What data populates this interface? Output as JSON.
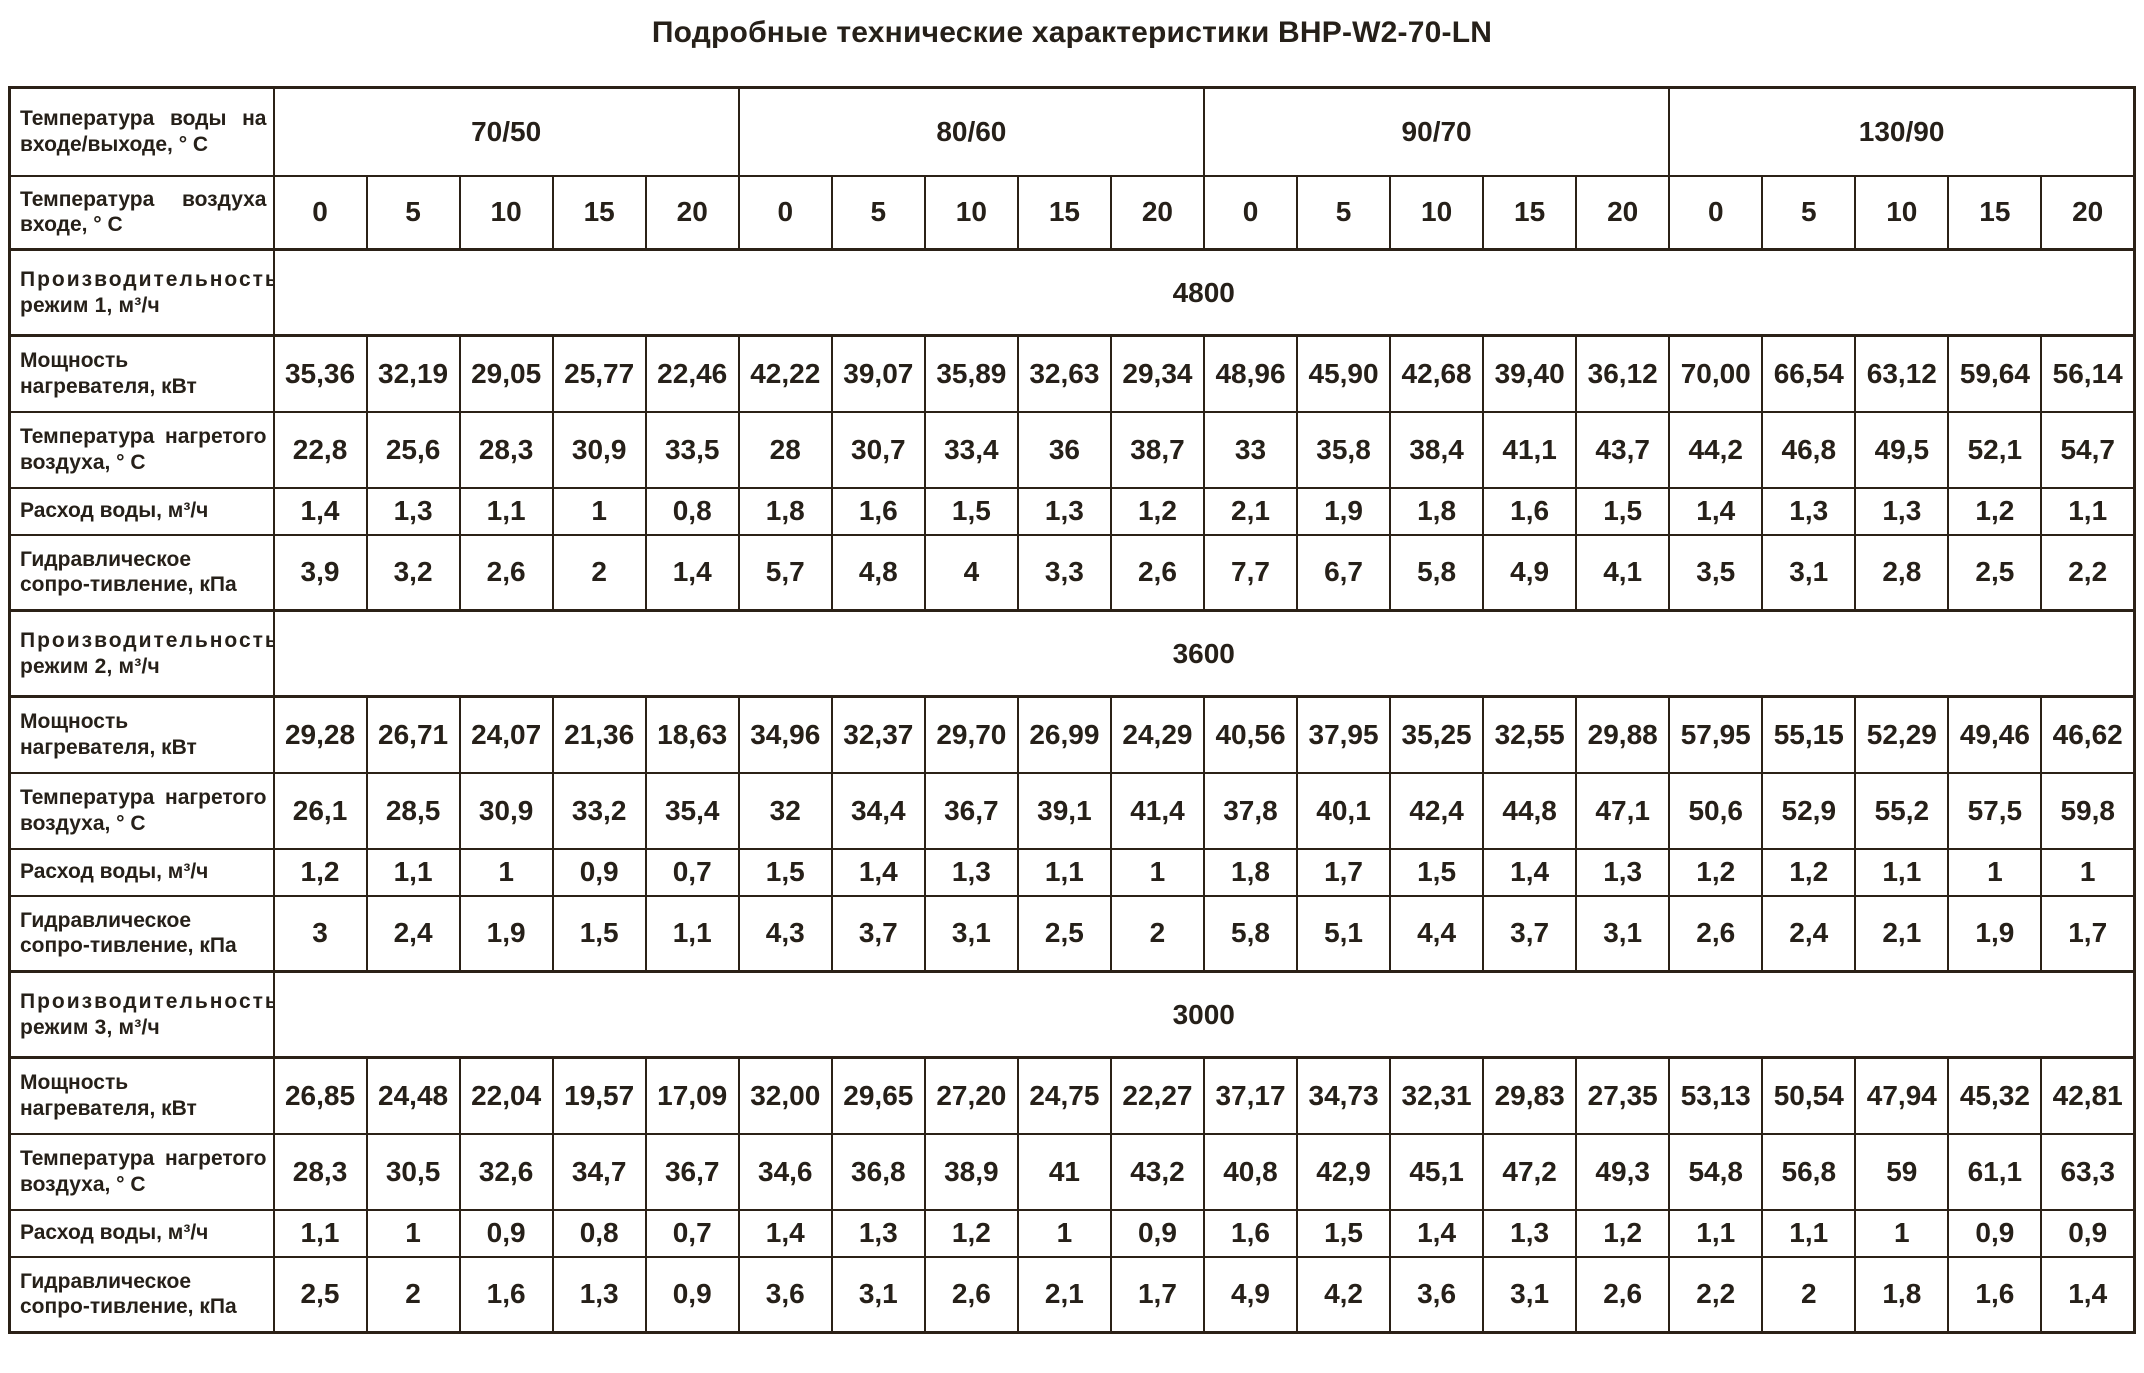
{
  "title": "Подробные технические характеристики BHP-W2-70-LN",
  "colors": {
    "text": "#262019",
    "border": "#2b2117",
    "background": "#ffffff"
  },
  "chart_data": {
    "type": "table",
    "title": "Подробные технические характеристики BHP-W2-70-LN",
    "water_temp_groups": [
      "70/50",
      "80/60",
      "90/70",
      "130/90"
    ],
    "air_temps_per_group": [
      0,
      5,
      10,
      15,
      20
    ],
    "modes": [
      {
        "capacity_m3h": 4800,
        "power_kW": [
          35.36,
          32.19,
          29.05,
          25.77,
          22.46,
          42.22,
          39.07,
          35.89,
          32.63,
          29.34,
          48.96,
          45.9,
          42.68,
          39.4,
          36.12,
          70.0,
          66.54,
          63.12,
          59.64,
          56.14
        ]
      },
      {
        "capacity_m3h": 3600,
        "power_kW": [
          29.28,
          26.71,
          24.07,
          21.36,
          18.63,
          34.96,
          32.37,
          29.7,
          26.99,
          24.29,
          40.56,
          37.95,
          35.25,
          32.55,
          29.88,
          57.95,
          55.15,
          52.29,
          49.46,
          46.62
        ]
      },
      {
        "capacity_m3h": 3000,
        "power_kW": [
          26.85,
          24.48,
          22.04,
          19.57,
          17.09,
          32.0,
          29.65,
          27.2,
          24.75,
          22.27,
          37.17,
          34.73,
          32.31,
          29.83,
          27.35,
          53.13,
          50.54,
          47.94,
          45.32,
          42.81
        ]
      }
    ]
  },
  "table": {
    "water_temp_header": {
      "label": "Температура воды на входе/выходе, ° С",
      "groups": [
        "70/50",
        "80/60",
        "90/70",
        "130/90"
      ]
    },
    "air_temp_header": {
      "label": "Температура воздуха входе, ° С",
      "values": [
        "0",
        "5",
        "10",
        "15",
        "20",
        "0",
        "5",
        "10",
        "15",
        "20",
        "0",
        "5",
        "10",
        "15",
        "20",
        "0",
        "5",
        "10",
        "15",
        "20"
      ]
    },
    "modes": [
      {
        "capacity_line1": "Производительность",
        "capacity_line2": "режим 1, м³/ч",
        "capacity_value": "4800",
        "rows": [
          {
            "label": "Мощность нагревателя, кВт",
            "values": [
              "35,36",
              "32,19",
              "29,05",
              "25,77",
              "22,46",
              "42,22",
              "39,07",
              "35,89",
              "32,63",
              "29,34",
              "48,96",
              "45,90",
              "42,68",
              "39,40",
              "36,12",
              "70,00",
              "66,54",
              "63,12",
              "59,64",
              "56,14"
            ]
          },
          {
            "label": "Температура нагретого воздуха, ° С",
            "values": [
              "22,8",
              "25,6",
              "28,3",
              "30,9",
              "33,5",
              "28",
              "30,7",
              "33,4",
              "36",
              "38,7",
              "33",
              "35,8",
              "38,4",
              "41,1",
              "43,7",
              "44,2",
              "46,8",
              "49,5",
              "52,1",
              "54,7"
            ]
          },
          {
            "label": "Расход воды, м³/ч",
            "values": [
              "1,4",
              "1,3",
              "1,1",
              "1",
              "0,8",
              "1,8",
              "1,6",
              "1,5",
              "1,3",
              "1,2",
              "2,1",
              "1,9",
              "1,8",
              "1,6",
              "1,5",
              "1,4",
              "1,3",
              "1,3",
              "1,2",
              "1,1"
            ]
          },
          {
            "label": "Гидравлическое сопро-тивление, кПа",
            "values": [
              "3,9",
              "3,2",
              "2,6",
              "2",
              "1,4",
              "5,7",
              "4,8",
              "4",
              "3,3",
              "2,6",
              "7,7",
              "6,7",
              "5,8",
              "4,9",
              "4,1",
              "3,5",
              "3,1",
              "2,8",
              "2,5",
              "2,2"
            ]
          }
        ]
      },
      {
        "capacity_line1": "Производительность",
        "capacity_line2": "режим 2, м³/ч",
        "capacity_value": "3600",
        "rows": [
          {
            "label": "Мощность нагревателя, кВт",
            "values": [
              "29,28",
              "26,71",
              "24,07",
              "21,36",
              "18,63",
              "34,96",
              "32,37",
              "29,70",
              "26,99",
              "24,29",
              "40,56",
              "37,95",
              "35,25",
              "32,55",
              "29,88",
              "57,95",
              "55,15",
              "52,29",
              "49,46",
              "46,62"
            ]
          },
          {
            "label": "Температура нагретого воздуха, ° С",
            "values": [
              "26,1",
              "28,5",
              "30,9",
              "33,2",
              "35,4",
              "32",
              "34,4",
              "36,7",
              "39,1",
              "41,4",
              "37,8",
              "40,1",
              "42,4",
              "44,8",
              "47,1",
              "50,6",
              "52,9",
              "55,2",
              "57,5",
              "59,8"
            ]
          },
          {
            "label": "Расход воды, м³/ч",
            "values": [
              "1,2",
              "1,1",
              "1",
              "0,9",
              "0,7",
              "1,5",
              "1,4",
              "1,3",
              "1,1",
              "1",
              "1,8",
              "1,7",
              "1,5",
              "1,4",
              "1,3",
              "1,2",
              "1,2",
              "1,1",
              "1",
              "1"
            ]
          },
          {
            "label": "Гидравлическое сопро-тивление, кПа",
            "values": [
              "3",
              "2,4",
              "1,9",
              "1,5",
              "1,1",
              "4,3",
              "3,7",
              "3,1",
              "2,5",
              "2",
              "5,8",
              "5,1",
              "4,4",
              "3,7",
              "3,1",
              "2,6",
              "2,4",
              "2,1",
              "1,9",
              "1,7"
            ]
          }
        ]
      },
      {
        "capacity_line1": "Производительность",
        "capacity_line2": "режим 3, м³/ч",
        "capacity_value": "3000",
        "rows": [
          {
            "label": "Мощность нагревателя, кВт",
            "values": [
              "26,85",
              "24,48",
              "22,04",
              "19,57",
              "17,09",
              "32,00",
              "29,65",
              "27,20",
              "24,75",
              "22,27",
              "37,17",
              "34,73",
              "32,31",
              "29,83",
              "27,35",
              "53,13",
              "50,54",
              "47,94",
              "45,32",
              "42,81"
            ]
          },
          {
            "label": "Температура нагретого воздуха, ° С",
            "values": [
              "28,3",
              "30,5",
              "32,6",
              "34,7",
              "36,7",
              "34,6",
              "36,8",
              "38,9",
              "41",
              "43,2",
              "40,8",
              "42,9",
              "45,1",
              "47,2",
              "49,3",
              "54,8",
              "56,8",
              "59",
              "61,1",
              "63,3"
            ]
          },
          {
            "label": "Расход воды, м³/ч",
            "values": [
              "1,1",
              "1",
              "0,9",
              "0,8",
              "0,7",
              "1,4",
              "1,3",
              "1,2",
              "1",
              "0,9",
              "1,6",
              "1,5",
              "1,4",
              "1,3",
              "1,2",
              "1,1",
              "1,1",
              "1",
              "0,9",
              "0,9"
            ]
          },
          {
            "label": "Гидравлическое сопро-тивление, кПа",
            "values": [
              "2,5",
              "2",
              "1,6",
              "1,3",
              "0,9",
              "3,6",
              "3,1",
              "2,6",
              "2,1",
              "1,7",
              "4,9",
              "4,2",
              "3,6",
              "3,1",
              "2,6",
              "2,2",
              "2",
              "1,8",
              "1,6",
              "1,4"
            ]
          }
        ]
      }
    ]
  }
}
